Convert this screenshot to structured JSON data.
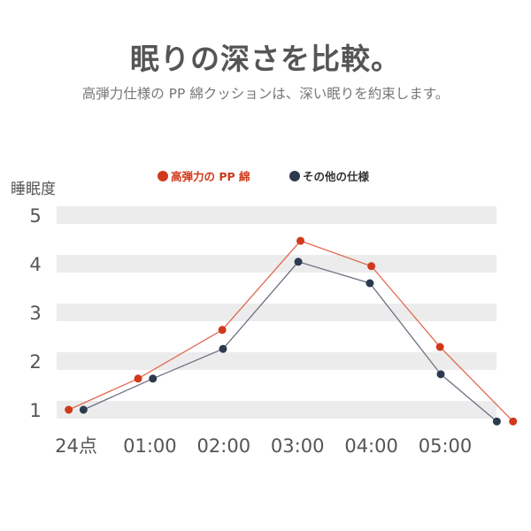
{
  "header": {
    "title": "眠りの深さを比較。",
    "subtitle": "高弾力仕様の PP 綿クッションは、深い眠りを約束します。"
  },
  "chart_data": {
    "type": "line",
    "title": "",
    "ylabel": "睡眠度",
    "xlabel": "",
    "ylim": [
      0.7,
      5.2
    ],
    "yticks": [
      1,
      2,
      3,
      4,
      5
    ],
    "xticks": [
      {
        "x": 0,
        "label": "24点"
      },
      {
        "x": 1,
        "label": "01:00"
      },
      {
        "x": 2,
        "label": "02:00"
      },
      {
        "x": 3,
        "label": "03:00"
      },
      {
        "x": 4,
        "label": "04:00"
      },
      {
        "x": 5,
        "label": "05:00"
      }
    ],
    "grid": "horizontal bands",
    "legend": "top-center",
    "series": [
      {
        "name": "高弾力の PP 綿",
        "color": "#d0391c",
        "line_color": "#e06a50",
        "points": [
          [
            -0.1,
            1.0
          ],
          [
            0.84,
            1.64
          ],
          [
            1.98,
            2.64
          ],
          [
            3.04,
            4.47
          ],
          [
            4.0,
            3.95
          ],
          [
            4.93,
            2.29
          ],
          [
            5.92,
            0.76
          ]
        ]
      },
      {
        "name": "その他の仕様",
        "color": "#2c3a4e",
        "line_color": "#6b7280",
        "points": [
          [
            0.1,
            1.0
          ],
          [
            1.04,
            1.64
          ],
          [
            1.99,
            2.25
          ],
          [
            3.01,
            4.04
          ],
          [
            3.98,
            3.6
          ],
          [
            4.94,
            1.73
          ],
          [
            5.7,
            0.76
          ]
        ]
      }
    ]
  }
}
